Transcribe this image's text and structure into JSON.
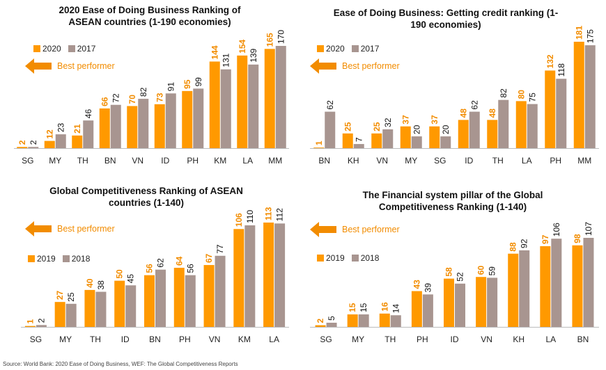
{
  "colors": {
    "primary": "#FF9900",
    "secondary": "#A89590",
    "label_primary": "#F28C00",
    "label_secondary": "#111111",
    "axis": "#BBBBBB"
  },
  "best_performer_label": "Best performer",
  "source": "Source: World Bank: 2020 Ease of Doing Business, WEF: The Global Competitiveness Reports",
  "chart_data": [
    {
      "type": "bar",
      "title": "2020 Ease of Doing Business Ranking of ASEAN countries (1-190 economies)",
      "categories": [
        "SG",
        "MY",
        "TH",
        "BN",
        "VN",
        "ID",
        "PH",
        "KM",
        "LA",
        "MM"
      ],
      "series": [
        {
          "name": "2020",
          "values": [
            2,
            12,
            21,
            66,
            70,
            73,
            95,
            144,
            154,
            165
          ]
        },
        {
          "name": "2017",
          "values": [
            2,
            23,
            46,
            72,
            82,
            91,
            99,
            131,
            139,
            170
          ]
        }
      ],
      "ylim": [
        0,
        170
      ],
      "legend": "top-left",
      "grid": false
    },
    {
      "type": "bar",
      "title": "Ease of Doing Business: Getting credit ranking (1-190 economies)",
      "categories": [
        "BN",
        "KH",
        "VN",
        "MY",
        "SG",
        "ID",
        "TH",
        "LA",
        "PH",
        "MM"
      ],
      "series": [
        {
          "name": "2020",
          "values": [
            1,
            25,
            25,
            37,
            37,
            48,
            48,
            80,
            132,
            181
          ]
        },
        {
          "name": "2017",
          "values": [
            62,
            7,
            32,
            20,
            20,
            62,
            82,
            75,
            118,
            175
          ]
        }
      ],
      "ylim": [
        0,
        181
      ],
      "legend": "top-left",
      "grid": false
    },
    {
      "type": "bar",
      "title": "Global Competitiveness Ranking of ASEAN countries (1-140)",
      "categories": [
        "SG",
        "MY",
        "TH",
        "ID",
        "BN",
        "PH",
        "VN",
        "KM",
        "LA"
      ],
      "series": [
        {
          "name": "2019",
          "values": [
            1,
            27,
            40,
            50,
            56,
            64,
            67,
            106,
            113
          ]
        },
        {
          "name": "2018",
          "values": [
            2,
            25,
            38,
            45,
            62,
            56,
            77,
            110,
            112
          ]
        }
      ],
      "ylim": [
        0,
        113
      ],
      "legend": "top-left",
      "grid": false
    },
    {
      "type": "bar",
      "title": "The Financial system pillar of the Global Competitiveness Ranking (1-140)",
      "categories": [
        "SG",
        "MY",
        "TH",
        "PH",
        "ID",
        "VN",
        "KH",
        "LA",
        "BN"
      ],
      "series": [
        {
          "name": "2019",
          "values": [
            2,
            15,
            16,
            43,
            58,
            60,
            88,
            97,
            98
          ]
        },
        {
          "name": "2018",
          "values": [
            5,
            15,
            14,
            39,
            52,
            59,
            92,
            106,
            107
          ]
        }
      ],
      "ylim": [
        0,
        107
      ],
      "legend": "top-left",
      "grid": false
    }
  ]
}
